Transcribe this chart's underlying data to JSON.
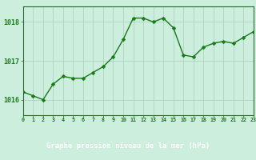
{
  "x": [
    0,
    1,
    2,
    3,
    4,
    5,
    6,
    7,
    8,
    9,
    10,
    11,
    12,
    13,
    14,
    15,
    16,
    17,
    18,
    19,
    20,
    21,
    22,
    23
  ],
  "y": [
    1016.2,
    1016.1,
    1016.0,
    1016.4,
    1016.6,
    1016.55,
    1016.55,
    1016.7,
    1016.85,
    1017.1,
    1017.55,
    1018.1,
    1018.1,
    1018.0,
    1018.1,
    1017.85,
    1017.15,
    1017.1,
    1017.35,
    1017.45,
    1017.5,
    1017.45,
    1017.6,
    1017.75
  ],
  "line_color": "#1a7a1a",
  "marker_color": "#1a7a1a",
  "bg_color": "#cceedd",
  "grid_color": "#aaccbb",
  "xlabel": "Graphe pression niveau de la mer (hPa)",
  "xlabel_color": "#1a7a1a",
  "tick_color": "#1a7a1a",
  "ylim": [
    1015.6,
    1018.4
  ],
  "yticks": [
    1016,
    1017,
    1018
  ],
  "xlim": [
    0,
    23
  ],
  "xticks": [
    0,
    1,
    2,
    3,
    4,
    5,
    6,
    7,
    8,
    9,
    10,
    11,
    12,
    13,
    14,
    15,
    16,
    17,
    18,
    19,
    20,
    21,
    22,
    23
  ],
  "marker_size": 2.5,
  "line_width": 1.0,
  "spine_color": "#336633",
  "bottom_bar_height": 0.13,
  "bottom_bar_color": "#2d6e2d"
}
